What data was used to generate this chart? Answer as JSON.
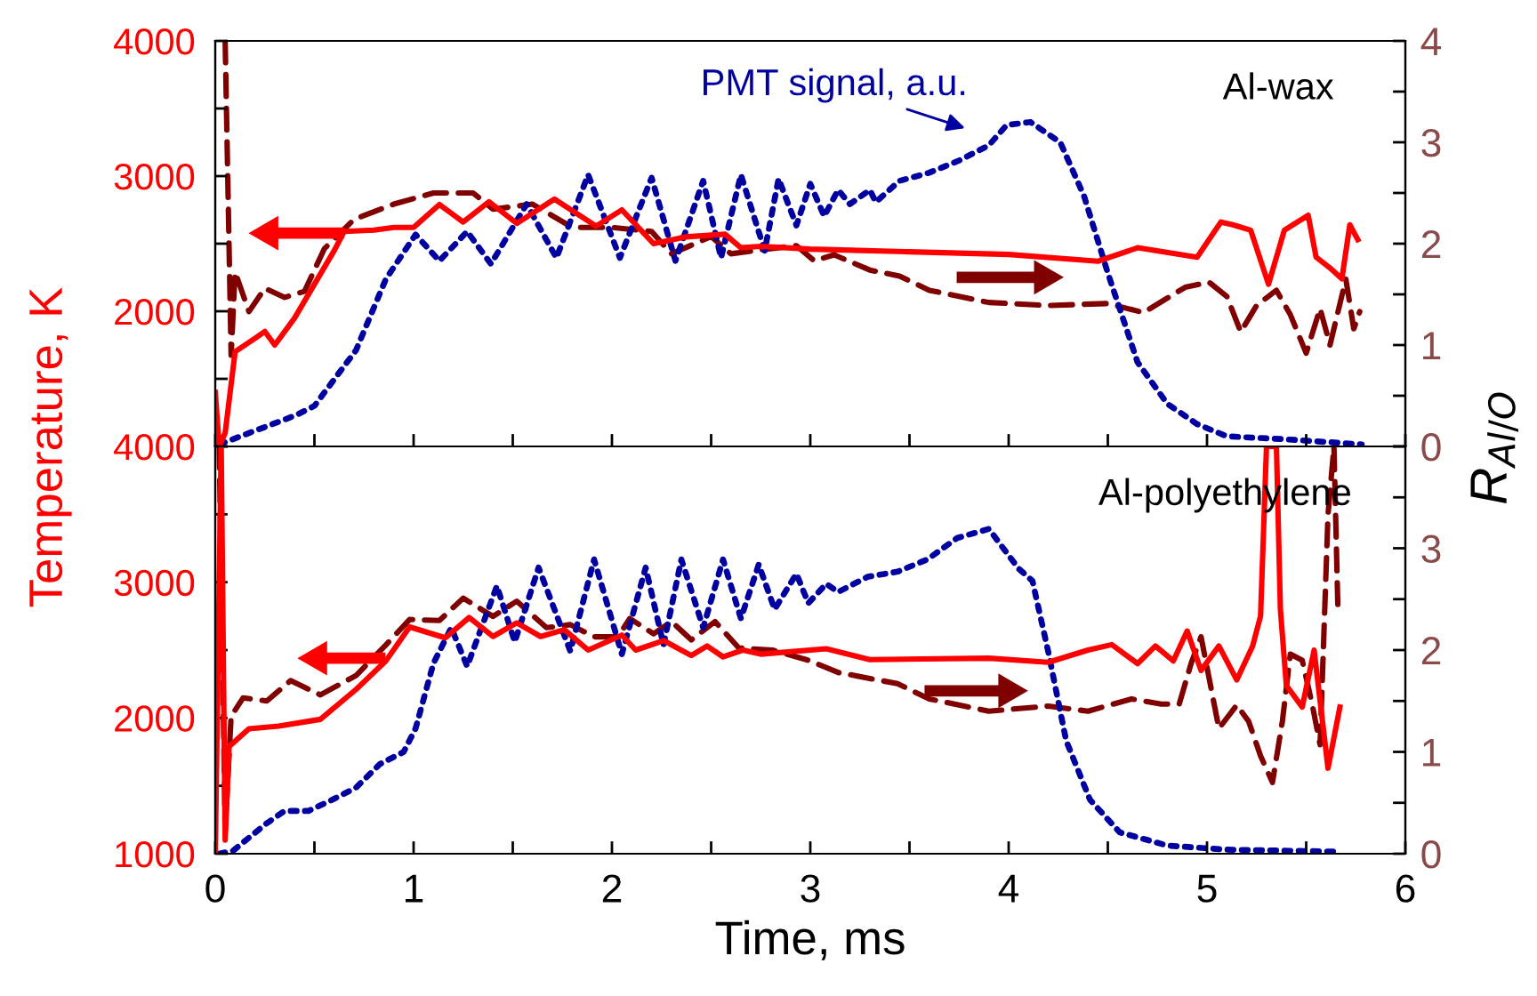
{
  "chart_data": [
    {
      "type": "line",
      "ylabel": "Temperature, K",
      "y2label": "R$_{Al/O}$",
      "annotations": [
        "Al-wax"
      ],
      "xlim": [
        0,
        6
      ],
      "xticks": [
        {
          "value": 0,
          "label": null
        },
        {
          "value": 0.5,
          "label": null
        },
        {
          "value": 1,
          "label": null
        },
        {
          "value": 1.5,
          "label": null
        },
        {
          "value": 2,
          "label": null
        },
        {
          "value": 2.5,
          "label": null
        },
        {
          "value": 3,
          "label": null
        },
        {
          "value": 3.5,
          "label": null
        },
        {
          "value": 4,
          "label": null
        },
        {
          "value": 4.5,
          "label": null
        },
        {
          "value": 5,
          "label": null
        },
        {
          "value": 5.5,
          "label": null
        },
        {
          "value": 6,
          "label": null
        }
      ],
      "ylim": [
        1000,
        4000
      ],
      "yticks": [
        {
          "value": 1000,
          "label": null
        },
        {
          "value": 1500,
          "label": null
        },
        2000,
        {
          "value": 2500,
          "label": null
        },
        3000,
        {
          "value": 3500,
          "label": null
        },
        4000
      ],
      "y2lim": [
        0,
        4
      ],
      "y2ticks": [
        0,
        {
          "value": 0.5,
          "label": null
        },
        1,
        {
          "value": 1.5,
          "label": null
        },
        2,
        {
          "value": 2.5,
          "label": null
        },
        3,
        {
          "value": 3.5,
          "label": null
        },
        4
      ],
      "tick_labels": "y",
      "series": [
        {
          "color": "#ff0000",
          "line_style": "solid",
          "x": [
            0,
            0.02,
            0.05,
            0.1,
            0.2,
            0.25,
            0.3,
            0.4,
            0.5,
            0.6,
            0.65,
            0.8,
            0.9,
            1.0,
            1.13,
            1.25,
            1.38,
            1.52,
            1.71,
            1.92,
            2.05,
            2.21,
            2.37,
            2.57,
            2.65,
            2.75,
            3.0,
            3.5,
            4.0,
            4.45,
            4.65,
            4.95,
            5.07,
            5.13,
            5.22,
            5.31,
            5.39,
            5.51,
            5.55,
            5.62,
            5.68,
            5.72,
            5.76
          ],
          "values": [
            1400,
            1000,
            1100,
            1700,
            1800,
            1850,
            1750,
            1950,
            2200,
            2450,
            2590,
            2600,
            2620,
            2620,
            2790,
            2660,
            2810,
            2650,
            2830,
            2630,
            2750,
            2500,
            2550,
            2570,
            2470,
            2480,
            2460,
            2440,
            2420,
            2370,
            2470,
            2400,
            2660,
            2640,
            2600,
            2200,
            2600,
            2710,
            2400,
            2320,
            2240,
            2640,
            2530
          ]
        },
        {
          "axis": "y2",
          "color": "#800000",
          "line_style": "dashed",
          "x": [
            0.05,
            0.08,
            0.1,
            0.17,
            0.25,
            0.35,
            0.45,
            0.55,
            0.7,
            0.9,
            1.1,
            1.3,
            1.4,
            1.6,
            1.8,
            2.0,
            2.2,
            2.3,
            2.5,
            2.6,
            2.75,
            2.93,
            3.02,
            3.12,
            3.3,
            3.45,
            3.6,
            3.9,
            4.2,
            4.5,
            4.68,
            4.89,
            5.01,
            5.1,
            5.17,
            5.25,
            5.35,
            5.42,
            5.5,
            5.57,
            5.62,
            5.7,
            5.74,
            5.77
          ],
          "values": [
            4,
            0.9,
            1.72,
            1.33,
            1.56,
            1.47,
            1.53,
            1.95,
            2.24,
            2.39,
            2.5,
            2.5,
            2.34,
            2.39,
            2.16,
            2.16,
            2.12,
            1.9,
            2.07,
            1.9,
            1.94,
            1.98,
            1.83,
            1.89,
            1.74,
            1.68,
            1.54,
            1.42,
            1.39,
            1.41,
            1.32,
            1.57,
            1.62,
            1.48,
            1.13,
            1.39,
            1.54,
            1.3,
            0.92,
            1.36,
            1.0,
            1.65,
            1.16,
            1.33
          ]
        },
        {
          "name": "PMT signal, a.u.",
          "axis": "y2",
          "color": "#0000a0",
          "line_style": "dotted",
          "x": [
            0.02,
            0.41,
            0.5,
            0.71,
            0.86,
            1.01,
            1.13,
            1.27,
            1.39,
            1.57,
            1.72,
            1.88,
            2.04,
            2.2,
            2.32,
            2.46,
            2.55,
            2.65,
            2.77,
            2.84,
            2.93,
            3.0,
            3.07,
            3.14,
            3.2,
            3.3,
            3.33,
            3.45,
            3.6,
            3.75,
            3.9,
            3.99,
            4.11,
            4.26,
            4.38,
            4.5,
            4.65,
            4.8,
            4.95,
            5.1,
            5.4,
            5.78
          ],
          "values": [
            0.02,
            0.31,
            0.4,
            0.95,
            1.65,
            2.09,
            1.83,
            2.12,
            1.8,
            2.39,
            1.86,
            2.68,
            1.86,
            2.65,
            1.83,
            2.62,
            1.86,
            2.68,
            1.93,
            2.64,
            2.18,
            2.59,
            2.27,
            2.53,
            2.39,
            2.53,
            2.41,
            2.62,
            2.7,
            2.82,
            2.97,
            3.17,
            3.2,
            3.0,
            2.47,
            1.71,
            0.83,
            0.42,
            0.22,
            0.1,
            0.07,
            0.02
          ]
        }
      ]
    },
    {
      "type": "line",
      "xlabel": "Time, ms",
      "annotations": [
        "Al-polyethylene"
      ],
      "xlim": [
        0,
        6
      ],
      "xticks": [
        0,
        {
          "value": 0.5,
          "label": null
        },
        1,
        {
          "value": 1.5,
          "label": null
        },
        2,
        {
          "value": 2.5,
          "label": null
        },
        3,
        {
          "value": 3.5,
          "label": null
        },
        4,
        {
          "value": 4.5,
          "label": null
        },
        5,
        {
          "value": 5.5,
          "label": null
        },
        6
      ],
      "ylim": [
        1000,
        4000
      ],
      "yticks": [
        1000,
        {
          "value": 1500,
          "label": null
        },
        2000,
        {
          "value": 2500,
          "label": null
        },
        3000,
        {
          "value": 3500,
          "label": null
        },
        4000
      ],
      "y2lim": [
        0,
        4
      ],
      "y2ticks": [
        0,
        {
          "value": 0.5,
          "label": null
        },
        1,
        {
          "value": 1.5,
          "label": null
        },
        2,
        {
          "value": 2.5,
          "label": null
        },
        3,
        {
          "value": 3.5,
          "label": null
        },
        {
          "value": 4,
          "label": null
        }
      ],
      "series": [
        {
          "color": "#ff0000",
          "line_style": "solid",
          "x": [
            0.0,
            0.03,
            0.05,
            0.07,
            0.17,
            0.32,
            0.53,
            0.71,
            0.86,
            0.98,
            1.16,
            1.28,
            1.4,
            1.52,
            1.64,
            1.76,
            1.88,
            2.05,
            2.12,
            2.26,
            2.4,
            2.48,
            2.56,
            2.66,
            2.75,
            3.08,
            3.3,
            3.9,
            4.2,
            4.4,
            4.52,
            4.65,
            4.74,
            4.83,
            4.9,
            4.97,
            5.06,
            5.15,
            5.23,
            5.27,
            5.3,
            5.35,
            5.37,
            5.4,
            5.48,
            5.54,
            5.61,
            5.67
          ],
          "values": [
            1000,
            4000,
            1100,
            1790,
            1920,
            1940,
            1990,
            2210,
            2420,
            2670,
            2590,
            2740,
            2600,
            2700,
            2600,
            2650,
            2500,
            2610,
            2500,
            2570,
            2460,
            2530,
            2450,
            2500,
            2470,
            2510,
            2430,
            2440,
            2410,
            2500,
            2540,
            2400,
            2530,
            2420,
            2640,
            2350,
            2530,
            2280,
            2530,
            2750,
            4000,
            4000,
            2800,
            2240,
            2080,
            2500,
            1630,
            2080
          ]
        },
        {
          "axis": "y2",
          "color": "#800000",
          "line_style": "dashed",
          "x": [
            0.02,
            0.05,
            0.08,
            0.14,
            0.26,
            0.38,
            0.53,
            0.71,
            0.86,
            0.98,
            1.13,
            1.25,
            1.4,
            1.52,
            1.67,
            1.79,
            1.91,
            2.03,
            2.09,
            2.21,
            2.3,
            2.4,
            2.52,
            2.64,
            2.81,
            2.99,
            3.14,
            3.44,
            3.6,
            3.9,
            4.2,
            4.4,
            4.62,
            4.77,
            4.86,
            4.92,
            4.97,
            5.06,
            5.15,
            5.21,
            5.27,
            5.33,
            5.38,
            5.42,
            5.48,
            5.53,
            5.57,
            5.61,
            5.64,
            5.66
          ],
          "values": [
            4,
            0.23,
            1.35,
            1.53,
            1.5,
            1.7,
            1.56,
            1.75,
            2.05,
            2.3,
            2.29,
            2.51,
            2.33,
            2.48,
            2.22,
            2.25,
            2.13,
            2.13,
            2.31,
            2.16,
            2.28,
            2.1,
            2.28,
            2.02,
            2.0,
            1.9,
            1.78,
            1.67,
            1.52,
            1.4,
            1.45,
            1.4,
            1.52,
            1.47,
            1.47,
            1.87,
            2.13,
            1.23,
            1.46,
            1.3,
            0.96,
            0.7,
            1.3,
            1.96,
            1.9,
            1.47,
            1.07,
            3.33,
            4,
            2.4
          ]
        },
        {
          "axis": "y2",
          "color": "#0000a0",
          "line_style": "dotted",
          "x": [
            0.02,
            0.09,
            0.26,
            0.35,
            0.47,
            0.59,
            0.71,
            0.83,
            0.95,
            1.01,
            1.1,
            1.19,
            1.27,
            1.42,
            1.51,
            1.63,
            1.79,
            1.91,
            2.05,
            2.17,
            2.26,
            2.35,
            2.46,
            2.56,
            2.65,
            2.74,
            2.82,
            2.93,
            2.99,
            3.08,
            3.14,
            3.29,
            3.44,
            3.59,
            3.74,
            3.9,
            4.05,
            4.12,
            4.2,
            4.29,
            4.41,
            4.56,
            4.8,
            5.1,
            5.66
          ],
          "values": [
            0,
            0.03,
            0.3,
            0.42,
            0.42,
            0.53,
            0.65,
            0.88,
            1.0,
            1.23,
            1.87,
            2.22,
            1.84,
            2.63,
            2.08,
            2.81,
            1.99,
            2.89,
            1.96,
            2.81,
            2.05,
            2.89,
            2.22,
            2.89,
            2.31,
            2.84,
            2.4,
            2.75,
            2.46,
            2.65,
            2.57,
            2.72,
            2.77,
            2.89,
            3.1,
            3.19,
            2.8,
            2.68,
            1.98,
            1.11,
            0.53,
            0.21,
            0.08,
            0.04,
            0.02
          ]
        }
      ]
    }
  ]
}
